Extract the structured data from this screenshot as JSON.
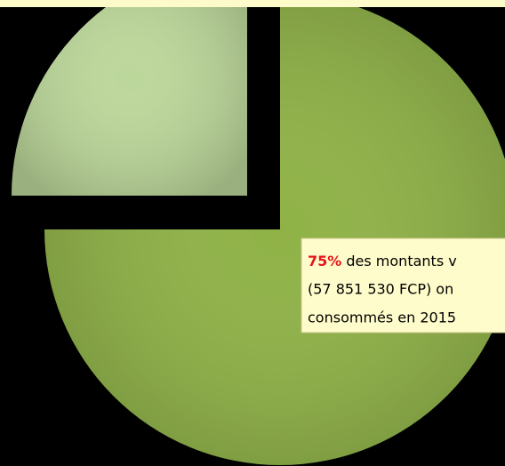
{
  "chart_data": {
    "type": "pie",
    "values": [
      75,
      25
    ],
    "colors": [
      "#8fb246",
      "#bcd79a"
    ],
    "annotation": {
      "highlight": "75%",
      "highlight_color": "#e8141b",
      "lines": [
        " des montants v",
        "(57 851 530 FCP) on",
        "consommés en 2015"
      ]
    }
  }
}
